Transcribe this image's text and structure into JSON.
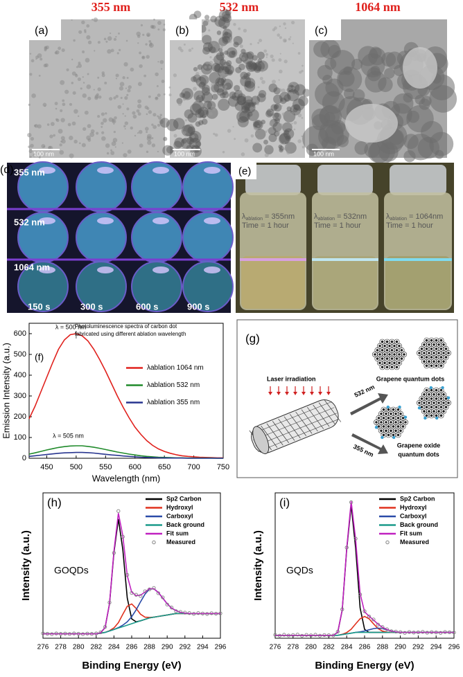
{
  "figure": {
    "headers": [
      "355 nm",
      "532 nm",
      "1064 nm"
    ],
    "tem": [
      {
        "label": "(a)",
        "scale": "100 nm"
      },
      {
        "label": "(b)",
        "scale": "100 nm"
      },
      {
        "label": "(c)",
        "scale": "100 nm"
      }
    ],
    "d": {
      "label": "(d)",
      "rows": [
        "355 nm",
        "532 nm",
        "1064 nm"
      ],
      "times": [
        "150 s",
        "300 s",
        "600 s",
        "900 s"
      ]
    },
    "e": {
      "label": "(e)",
      "vials": [
        {
          "symbol": "λ",
          "sub": "ablation",
          "rest": "= 355nm",
          "time": "Time = 1 hour"
        },
        {
          "symbol": "λ",
          "sub": "ablation",
          "rest": "= 532nm",
          "time": "Time = 1 hour"
        },
        {
          "symbol": "λ",
          "sub": "ablation",
          "rest": "= 1064nm",
          "time": "Time = 1 hour"
        }
      ]
    },
    "g": {
      "label": "(g)",
      "laser": "Laser irradiation",
      "paths": [
        "532 nm",
        "355 nm"
      ],
      "products": [
        [
          "Grapene quantum dots"
        ],
        [
          "Grapene oxide",
          "quantum dots"
        ]
      ]
    }
  },
  "chart_data": [
    {
      "type": "line",
      "panel_label": "(f)",
      "xlabel": "Wavelength (nm)",
      "ylabel": "Emission Intensity (a.u.)",
      "annotations": [
        "λ = 500 nm",
        "λ = 505 nm"
      ],
      "note": [
        "Photoluminescence spectra of carbon dot",
        "fabricated using different ablation wavelength"
      ],
      "legend": "center right",
      "x": [
        420,
        430,
        440,
        450,
        460,
        470,
        480,
        490,
        500,
        510,
        520,
        530,
        540,
        550,
        560,
        570,
        580,
        590,
        600,
        610,
        620,
        630,
        640,
        650,
        660,
        670,
        680,
        690,
        700,
        710,
        720,
        730,
        740,
        750
      ],
      "xlim": [
        420,
        750
      ],
      "xticks": [
        450,
        500,
        550,
        600,
        650,
        700,
        750
      ],
      "ylim": [
        0,
        650
      ],
      "yticks": [
        0,
        100,
        200,
        300,
        400,
        500,
        600
      ],
      "series": [
        {
          "name": "λablation 1064 nm",
          "color": "#e0201c",
          "values": [
            190,
            250,
            320,
            390,
            460,
            525,
            570,
            595,
            600,
            590,
            565,
            525,
            475,
            420,
            360,
            300,
            245,
            195,
            150,
            115,
            85,
            62,
            45,
            33,
            24,
            17,
            12,
            9,
            7,
            5,
            4,
            3,
            2,
            2
          ]
        },
        {
          "name": "λablation 532 nm",
          "color": "#1f8a2a",
          "values": [
            20,
            26,
            33,
            40,
            46,
            52,
            56,
            59,
            60,
            60,
            57,
            53,
            48,
            42,
            36,
            30,
            25,
            20,
            16,
            12,
            9,
            7,
            5,
            4,
            3,
            2,
            2,
            1,
            1,
            1,
            1,
            1,
            0,
            0
          ]
        },
        {
          "name": "λablation 355 nm",
          "color": "#27348f",
          "values": [
            9,
            12,
            15,
            18,
            21,
            24,
            26,
            27,
            28,
            28,
            27,
            25,
            22,
            19,
            16,
            14,
            11,
            9,
            7,
            5,
            4,
            3,
            2,
            2,
            1,
            1,
            1,
            0,
            0,
            0,
            0,
            0,
            0,
            0
          ]
        }
      ]
    },
    {
      "type": "line",
      "panel_label": "(h)",
      "sample": "GOQDs",
      "xlabel": "Binding Energy (eV)",
      "ylabel": "Intensity (a.u.)",
      "legend": "top right",
      "x": [
        276,
        276.5,
        277,
        277.5,
        278,
        278.5,
        279,
        279.5,
        280,
        280.5,
        281,
        281.5,
        282,
        282.5,
        283,
        283.5,
        284,
        284.5,
        285,
        285.5,
        286,
        286.5,
        287,
        287.5,
        288,
        288.5,
        289,
        289.5,
        290,
        290.5,
        291,
        291.5,
        292,
        292.5,
        293,
        293.5,
        294,
        294.5,
        295,
        295.5,
        296
      ],
      "xlim": [
        276,
        296
      ],
      "xticks": [
        276,
        278,
        280,
        282,
        284,
        286,
        288,
        290,
        292,
        294,
        296
      ],
      "ylim": [
        0,
        100
      ],
      "series": [
        {
          "name": "Sp2 Carbon",
          "color": "#000000",
          "values": [
            3,
            3,
            3,
            3,
            3,
            3,
            3,
            3,
            3,
            3,
            3,
            3,
            3,
            3.8,
            7.3,
            23.7,
            59,
            82,
            61,
            27.7,
            13.3,
            11.3,
            12,
            13,
            14,
            14.5,
            15,
            15.5,
            16,
            16.5,
            17,
            17,
            17,
            17,
            17,
            17,
            17,
            17,
            17,
            17,
            17
          ]
        },
        {
          "name": "Hydroxyl",
          "color": "#e0301c",
          "values": [
            3,
            3,
            3,
            3,
            3,
            3,
            3,
            3,
            3,
            3,
            3,
            3,
            3,
            3.5,
            4,
            5.2,
            7.1,
            10.7,
            16.5,
            22,
            23.6,
            20.5,
            16.5,
            14.5,
            14.3,
            14.5,
            15,
            15.5,
            16,
            16.5,
            17,
            17,
            17,
            17,
            17,
            17,
            17,
            17,
            17,
            17,
            17
          ]
        },
        {
          "name": "Carboxyl",
          "color": "#2a4aa8",
          "values": [
            3,
            3,
            3,
            3,
            3,
            3,
            3,
            3,
            3,
            3,
            3,
            3,
            3,
            3.5,
            4,
            5,
            6,
            7.3,
            9,
            11.3,
            14.8,
            19.5,
            25.1,
            30.3,
            33.8,
            34,
            31.5,
            27.6,
            23.7,
            20.7,
            19,
            17.8,
            17.3,
            17,
            17,
            17,
            17,
            17,
            17,
            17,
            17
          ]
        },
        {
          "name": "Back ground",
          "color": "#1a9a8a",
          "values": [
            3,
            3,
            3,
            3,
            3,
            3,
            3,
            3,
            3,
            3,
            3,
            3,
            3,
            3.5,
            4,
            5,
            6,
            7,
            8,
            9,
            10,
            11,
            12,
            13,
            14,
            14.5,
            15,
            15.5,
            16,
            16.5,
            17,
            17,
            17,
            17,
            17,
            17,
            17,
            17,
            17,
            17,
            17
          ]
        },
        {
          "name": "Fit sum",
          "color": "#c020c0",
          "values": [
            3,
            3,
            3,
            3,
            3,
            3,
            3,
            3,
            3,
            3,
            3,
            3,
            3,
            3.8,
            7.3,
            23.9,
            60.1,
            86,
            70.5,
            43,
            31.7,
            29.3,
            29.6,
            31.8,
            34.1,
            34,
            31.5,
            27.6,
            23.7,
            20.7,
            19,
            17.8,
            17.3,
            17,
            17,
            17,
            17,
            17,
            17,
            17,
            17
          ]
        },
        {
          "name": "Measured",
          "color": "#808080",
          "marker": "circle",
          "values": [
            3.4,
            3.1,
            2.8,
            3.3,
            3.0,
            3.2,
            2.9,
            3.3,
            3.1,
            2.8,
            3.2,
            3.0,
            3.3,
            4.1,
            7.8,
            24.6,
            58.7,
            87.5,
            69.8,
            43.6,
            31.2,
            29.9,
            29.1,
            32.3,
            33.6,
            34.6,
            31.0,
            28.1,
            23.2,
            21.1,
            18.6,
            18.1,
            17.6,
            17.3,
            16.8,
            17.3,
            17.0,
            16.7,
            17.2,
            16.9,
            17.1
          ]
        }
      ]
    },
    {
      "type": "line",
      "panel_label": "(i)",
      "sample": "GQDs",
      "xlabel": "Binding Energy (eV)",
      "ylabel": "Intensity (a.u.)",
      "legend": "top right",
      "x": [
        276,
        276.5,
        277,
        277.5,
        278,
        278.5,
        279,
        279.5,
        280,
        280.5,
        281,
        281.5,
        282,
        282.5,
        283,
        283.5,
        284,
        284.5,
        285,
        285.5,
        286,
        286.5,
        287,
        287.5,
        288,
        288.5,
        289,
        289.5,
        290,
        290.5,
        291,
        291.5,
        292,
        292.5,
        293,
        293.5,
        294,
        294.5,
        295,
        295.5,
        296
      ],
      "xlim": [
        276,
        296
      ],
      "xticks": [
        276,
        278,
        280,
        282,
        284,
        286,
        288,
        290,
        292,
        294,
        296
      ],
      "ylim": [
        0,
        100
      ],
      "series": [
        {
          "name": "Sp2 Carbon",
          "color": "#000000",
          "values": [
            2,
            2,
            2,
            2,
            2,
            2,
            2,
            2,
            2,
            2,
            2,
            2,
            2,
            2,
            4.1,
            19.4,
            61,
            91.5,
            62,
            20.9,
            6.1,
            4,
            4,
            4,
            4,
            4,
            4,
            4,
            4,
            4,
            4,
            4,
            4,
            4,
            4,
            4,
            4,
            4,
            4,
            4,
            4
          ]
        },
        {
          "name": "Hydroxyl",
          "color": "#e0301c",
          "values": [
            2,
            2,
            2,
            2,
            2,
            2,
            2,
            2,
            2,
            2,
            2,
            2,
            2,
            2,
            2,
            2.7,
            3.9,
            6.2,
            9.9,
            13.4,
            15,
            13.4,
            9.9,
            6.7,
            4.9,
            4.2,
            4,
            4,
            4,
            4,
            4,
            4,
            4,
            4,
            4,
            4,
            4,
            4,
            4,
            4,
            4
          ]
        },
        {
          "name": "Carboxyl",
          "color": "#2a4aa8",
          "values": [
            2,
            2,
            2,
            2,
            2,
            2,
            2,
            2,
            2,
            2,
            2,
            2,
            2,
            2,
            2,
            2.5,
            3,
            3.5,
            4,
            4.4,
            5,
            5.8,
            6.6,
            7,
            6.6,
            5.8,
            5,
            4.4,
            4,
            4,
            4,
            4,
            4,
            4,
            4,
            4,
            4,
            4,
            4,
            4,
            4
          ]
        },
        {
          "name": "Back ground",
          "color": "#1a9a8a",
          "values": [
            2,
            2,
            2,
            2,
            2,
            2,
            2,
            2,
            2,
            2,
            2,
            2,
            2,
            2,
            2,
            2.5,
            3,
            3.5,
            4,
            4,
            4,
            4,
            4,
            4,
            4,
            4,
            4,
            4,
            4,
            4,
            4,
            4,
            4,
            4,
            4,
            4,
            4,
            4,
            4,
            4,
            4
          ]
        },
        {
          "name": "Fit sum",
          "color": "#c020c0",
          "values": [
            2,
            2,
            2,
            2,
            2,
            2,
            2,
            2,
            2,
            2,
            2,
            2,
            2,
            2,
            4.1,
            19.6,
            61.9,
            94.2,
            67.9,
            30.7,
            18.1,
            15.2,
            12.5,
            9.7,
            7.5,
            6,
            5,
            4.4,
            4,
            4,
            4,
            4,
            4,
            4,
            4,
            4,
            4,
            4,
            4,
            4,
            4
          ]
        },
        {
          "name": "Measured",
          "color": "#808080",
          "marker": "circle",
          "values": [
            2.3,
            1.8,
            2.4,
            1.9,
            2.2,
            2.5,
            1.7,
            2.3,
            2.0,
            2.4,
            1.8,
            2.2,
            2.1,
            1.9,
            4.5,
            19.9,
            62.4,
            93.6,
            68.5,
            30.1,
            18.6,
            15.0,
            12.9,
            9.4,
            7.7,
            6.2,
            4.8,
            4.6,
            4.2,
            3.7,
            4.3,
            3.9,
            4.1,
            4.4,
            3.8,
            4.2,
            4.0,
            3.7,
            4.3,
            4.1,
            3.9
          ]
        }
      ]
    }
  ]
}
